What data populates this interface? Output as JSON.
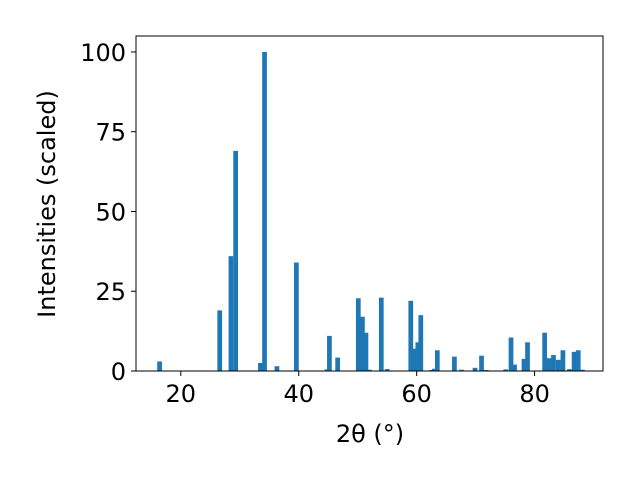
{
  "chart_data": {
    "type": "bar",
    "xlabel": "2θ (°)",
    "ylabel": "Intensities (scaled)",
    "xlim": [
      12.4,
      91.6
    ],
    "ylim": [
      0,
      105
    ],
    "xticks": [
      20,
      40,
      60,
      80
    ],
    "yticks": [
      0,
      25,
      50,
      75,
      100
    ],
    "bar_color": "#1f77b4",
    "grid": false,
    "x": [
      16.4,
      26.6,
      28.5,
      29.3,
      33.5,
      34.2,
      36.3,
      39.6,
      44.8,
      45.2,
      46.6,
      50.1,
      50.8,
      51.4,
      52.0,
      54.0,
      55.0,
      59.0,
      59.6,
      60.2,
      60.7,
      62.5,
      63.0,
      63.5,
      66.4,
      67.6,
      69.9,
      71.0,
      71.8,
      75.1,
      76.0,
      76.6,
      78.2,
      78.8,
      81.7,
      82.5,
      83.2,
      84.0,
      84.8,
      85.9,
      86.7,
      87.4,
      88.1
    ],
    "values": [
      3.0,
      19.0,
      36.0,
      69.0,
      2.5,
      100.0,
      1.5,
      34.0,
      0.5,
      11.0,
      4.2,
      22.8,
      17.0,
      12.0,
      0.4,
      23.0,
      0.6,
      22.0,
      7.0,
      9.0,
      17.5,
      0.3,
      0.7,
      6.5,
      4.5,
      0.4,
      1.0,
      4.8,
      0.3,
      0.5,
      10.5,
      2.0,
      3.8,
      9.0,
      12.0,
      4.0,
      5.0,
      3.5,
      6.5,
      0.6,
      6.0,
      6.5,
      0.4
    ]
  }
}
